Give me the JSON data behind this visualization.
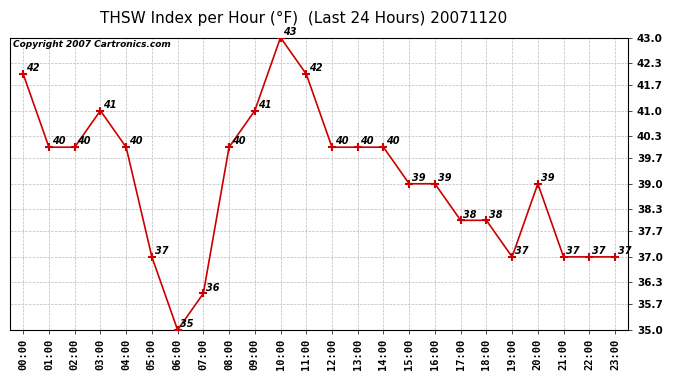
{
  "title": "THSW Index per Hour (°F)  (Last 24 Hours) 20071120",
  "copyright": "Copyright 2007 Cartronics.com",
  "hours": [
    "00:00",
    "01:00",
    "02:00",
    "03:00",
    "04:00",
    "05:00",
    "06:00",
    "07:00",
    "08:00",
    "09:00",
    "10:00",
    "11:00",
    "12:00",
    "13:00",
    "14:00",
    "15:00",
    "16:00",
    "17:00",
    "18:00",
    "19:00",
    "20:00",
    "21:00",
    "22:00",
    "23:00"
  ],
  "values": [
    42,
    40,
    40,
    41,
    40,
    37,
    35,
    36,
    40,
    41,
    43,
    42,
    40,
    40,
    40,
    39,
    39,
    38,
    38,
    37,
    39,
    37,
    37,
    37
  ],
  "ylim": [
    35.0,
    43.0
  ],
  "yticks": [
    35.0,
    35.7,
    36.3,
    37.0,
    37.7,
    38.3,
    39.0,
    39.7,
    40.3,
    41.0,
    41.7,
    42.3,
    43.0
  ],
  "line_color": "#cc0000",
  "marker_color": "#cc0000",
  "bg_color": "#ffffff",
  "grid_color": "#bbbbbb",
  "title_fontsize": 11,
  "label_fontsize": 7.5,
  "annotation_fontsize": 7,
  "copyright_fontsize": 6.5
}
